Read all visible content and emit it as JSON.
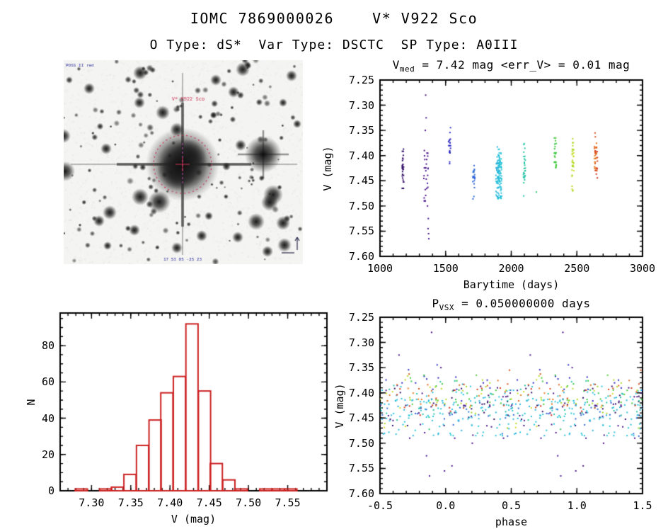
{
  "page": {
    "title": "IOMC 7869000026    V* V922 Sco",
    "subtitle": "O Type: dS*  Var Type: DSCTC  SP Type: A0III"
  },
  "starfield": {
    "target_label": "V* V922 Sco",
    "credit_text": "POSS II red",
    "coords_text": "17 53 05 -25 23",
    "colors": {
      "target_marker": "#cc3355",
      "annotation_blue": "#2a2a9a"
    }
  },
  "colors": {
    "background": "#ffffff",
    "axis_black": "#000000",
    "histogram_red": "#cc2020",
    "colormap_stops": [
      {
        "u": 0.0,
        "color": "#2c0a60"
      },
      {
        "u": 0.13,
        "color": "#4b1287"
      },
      {
        "u": 0.25,
        "color": "#2a28c4"
      },
      {
        "u": 0.37,
        "color": "#2e6ad8"
      },
      {
        "u": 0.5,
        "color": "#2ac4dc"
      },
      {
        "u": 0.63,
        "color": "#22c49a"
      },
      {
        "u": 0.775,
        "color": "#38c838"
      },
      {
        "u": 0.85,
        "color": "#aad822"
      },
      {
        "u": 0.9,
        "color": "#ece032"
      },
      {
        "u": 0.95,
        "color": "#f08c1c"
      },
      {
        "u": 1.0,
        "color": "#cc2812"
      }
    ]
  },
  "chart_data": [
    {
      "id": "lightcurve",
      "type": "scatter",
      "title": {
        "base": "V",
        "sub": "med",
        "rest": " = 7.42 mag <err_V> = 0.01 mag"
      },
      "median_v_mag": 7.42,
      "mean_err_v_mag": 0.01,
      "xlabel": "Barytime (days)",
      "ylabel": "V (mag)",
      "xlim": [
        1000,
        3000
      ],
      "ylim": [
        7.25,
        7.6
      ],
      "y_inverted": true,
      "color_by_time_range": [
        1150,
        2680
      ],
      "xticks": {
        "values": [
          1000,
          1500,
          2000,
          2500,
          3000
        ],
        "labels": [
          "1000",
          "1500",
          "2000",
          "2500",
          "3000"
        ],
        "minor_step": 100
      },
      "yticks": {
        "values": [
          7.25,
          7.3,
          7.35,
          7.4,
          7.45,
          7.5,
          7.55,
          7.6
        ],
        "labels": [
          "7.25",
          "7.30",
          "7.35",
          "7.40",
          "7.45",
          "7.50",
          "7.55",
          "7.60"
        ],
        "minor_step": 0.01
      },
      "clusters": [
        {
          "t": 1175,
          "t_spread": 6,
          "n": 28,
          "v_mean": 7.432,
          "v_sigma": 0.022,
          "v_range": [
            7.375,
            7.465
          ]
        },
        {
          "t": 1350,
          "t_spread": 18,
          "n": 26,
          "v_mean": 7.44,
          "v_sigma": 0.03,
          "v_range": [
            7.39,
            7.49
          ]
        },
        {
          "t": 1530,
          "t_spread": 8,
          "n": 18,
          "v_mean": 7.385,
          "v_sigma": 0.025,
          "v_range": [
            7.34,
            7.425
          ]
        },
        {
          "t": 1715,
          "t_spread": 8,
          "n": 20,
          "v_mean": 7.45,
          "v_sigma": 0.018,
          "v_range": [
            7.415,
            7.49
          ]
        },
        {
          "t": 1905,
          "t_spread": 22,
          "n": 130,
          "v_mean": 7.435,
          "v_sigma": 0.028,
          "v_range": [
            7.33,
            7.485
          ]
        },
        {
          "t": 2100,
          "t_spread": 8,
          "n": 26,
          "v_mean": 7.42,
          "v_sigma": 0.03,
          "v_range": [
            7.355,
            7.48
          ]
        },
        {
          "t": 2190,
          "t_spread": 2,
          "n": 1,
          "v_mean": 7.475,
          "v_sigma": 0.002,
          "v_range": [
            7.47,
            7.48
          ]
        },
        {
          "t": 2335,
          "t_spread": 8,
          "n": 22,
          "v_mean": 7.4,
          "v_sigma": 0.02,
          "v_range": [
            7.365,
            7.44
          ]
        },
        {
          "t": 2470,
          "t_spread": 8,
          "n": 32,
          "v_mean": 7.41,
          "v_sigma": 0.03,
          "v_range": [
            7.35,
            7.47
          ]
        },
        {
          "t": 2645,
          "t_spread": 12,
          "n": 38,
          "v_mean": 7.405,
          "v_sigma": 0.022,
          "v_range": [
            7.355,
            7.455
          ]
        }
      ],
      "outliers": [
        {
          "t": 1348,
          "v": 7.28
        },
        {
          "t": 1352,
          "v": 7.325
        },
        {
          "t": 1345,
          "v": 7.35
        },
        {
          "t": 1358,
          "v": 7.395
        },
        {
          "t": 1362,
          "v": 7.5
        },
        {
          "t": 1368,
          "v": 7.525
        },
        {
          "t": 1366,
          "v": 7.545
        },
        {
          "t": 1370,
          "v": 7.555
        },
        {
          "t": 1372,
          "v": 7.565
        }
      ]
    },
    {
      "id": "histogram",
      "type": "bar",
      "xlabel": "V (mag)",
      "ylabel": "N",
      "xlim": [
        7.26,
        7.6
      ],
      "ylim": [
        0,
        98
      ],
      "bin_width": 0.0155,
      "bin_centers": [
        7.287,
        7.318,
        7.333,
        7.349,
        7.365,
        7.381,
        7.396,
        7.412,
        7.428,
        7.444,
        7.459,
        7.475,
        7.491,
        7.522,
        7.538,
        7.554
      ],
      "counts": [
        1,
        1,
        2,
        9,
        25,
        39,
        54,
        63,
        92,
        55,
        15,
        6,
        1,
        1,
        1,
        1
      ],
      "xticks": {
        "values": [
          7.3,
          7.35,
          7.4,
          7.45,
          7.5,
          7.55
        ],
        "labels": [
          "7.30",
          "7.35",
          "7.40",
          "7.45",
          "7.50",
          "7.55"
        ],
        "minor_step": 0.01
      },
      "yticks": {
        "values": [
          0,
          20,
          40,
          60,
          80
        ],
        "labels": [
          "0",
          "20",
          "40",
          "60",
          "80"
        ],
        "minor_step": 5
      }
    },
    {
      "id": "phase_curve",
      "type": "scatter",
      "title": {
        "base": "P",
        "sub": "VSX",
        "rest": " = 0.050000000 days"
      },
      "period_days": 0.05,
      "xlabel": "phase",
      "ylabel": "V (mag)",
      "xlim": [
        -0.5,
        1.5
      ],
      "ylim": [
        7.25,
        7.6
      ],
      "y_inverted": true,
      "xticks": {
        "values": [
          -0.5,
          0.0,
          0.5,
          1.0,
          1.5
        ],
        "labels": [
          "-0.5",
          "0.0",
          "0.5",
          "1.0",
          "1.5"
        ],
        "minor_step": 0.1
      },
      "yticks": {
        "values": [
          7.25,
          7.3,
          7.35,
          7.4,
          7.45,
          7.5,
          7.55,
          7.6
        ],
        "labels": [
          "7.25",
          "7.30",
          "7.35",
          "7.40",
          "7.45",
          "7.50",
          "7.55",
          "7.60"
        ],
        "minor_step": 0.01
      }
    }
  ]
}
